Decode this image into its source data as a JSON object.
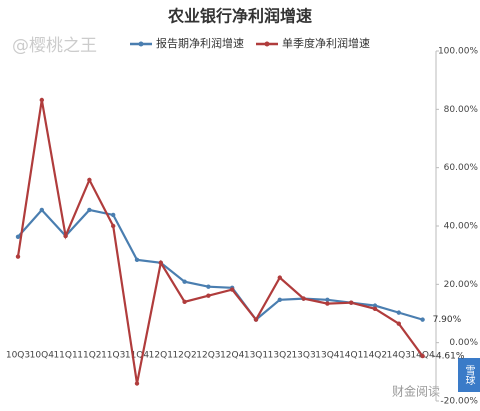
{
  "chart_data": {
    "type": "line",
    "title": "农业银行净利润增速",
    "categories": [
      "10Q3",
      "10Q4",
      "11Q1",
      "11Q2",
      "11Q3",
      "11Q4",
      "12Q1",
      "12Q2",
      "12Q3",
      "12Q4",
      "13Q1",
      "13Q2",
      "13Q3",
      "13Q4",
      "14Q1",
      "14Q2",
      "14Q3",
      "14Q4"
    ],
    "series": [
      {
        "name": "报告期净利润增速",
        "color": "#4a7eb0",
        "values": [
          36.3,
          45.5,
          36.6,
          45.5,
          43.8,
          28.4,
          27.4,
          20.9,
          19.2,
          18.8,
          7.9,
          14.7,
          15.1,
          14.7,
          13.7,
          12.7,
          10.3,
          7.9
        ],
        "value_labels": [
          null,
          null,
          null,
          null,
          null,
          null,
          null,
          null,
          null,
          null,
          null,
          null,
          null,
          null,
          null,
          null,
          null,
          "7.90%"
        ]
      },
      {
        "name": "单季度净利润增速",
        "color": "#b03c3c",
        "values": [
          29.5,
          83.2,
          36.6,
          55.8,
          40.0,
          -14.0,
          27.4,
          14.0,
          16.1,
          18.2,
          7.9,
          22.3,
          15.1,
          13.4,
          13.7,
          11.6,
          6.5,
          -4.61
        ],
        "value_labels": [
          null,
          null,
          null,
          null,
          null,
          null,
          null,
          null,
          null,
          null,
          null,
          null,
          null,
          null,
          null,
          null,
          null,
          "-4.61%"
        ]
      }
    ],
    "ylim": [
      -20,
      100
    ],
    "yticks": [
      {
        "value": -20,
        "label": "-20.00%"
      },
      {
        "value": 0,
        "label": "0.00%"
      },
      {
        "value": 20,
        "label": "20.00%"
      },
      {
        "value": 40,
        "label": "40.00%"
      },
      {
        "value": 60,
        "label": "60.00%"
      },
      {
        "value": 80,
        "label": "80.00%"
      },
      {
        "value": 100,
        "label": "100.00%"
      }
    ],
    "y_axis_side": "right",
    "grid": false,
    "legend": "top",
    "annotations": [
      "@樱桃之王",
      "财金阅读",
      "雪球"
    ]
  }
}
